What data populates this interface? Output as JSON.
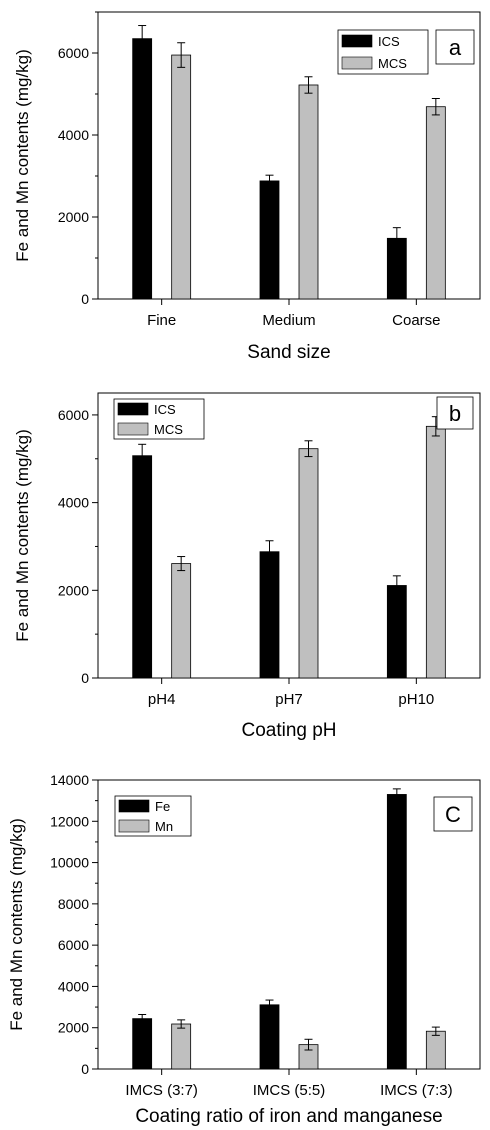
{
  "chart_data": [
    {
      "type": "bar",
      "panel_label": "a",
      "categories": [
        "Fine",
        "Medium",
        "Coarse"
      ],
      "series": [
        {
          "name": "ICS",
          "values": [
            6350,
            2880,
            1480
          ],
          "errors": [
            320,
            140,
            260
          ],
          "color": "#000000"
        },
        {
          "name": "MCS",
          "values": [
            5950,
            5220,
            4690
          ],
          "errors": [
            300,
            200,
            200
          ],
          "color": "#bfbfbf"
        }
      ],
      "xlabel": "Sand size",
      "ylabel": "Fe and Mn contents (mg/kg)",
      "ylim": [
        0,
        7000
      ],
      "yticks": [
        0,
        2000,
        4000,
        6000
      ],
      "minor_step": 1000,
      "legend_position": "top-right",
      "grid": false
    },
    {
      "type": "bar",
      "panel_label": "b",
      "categories": [
        "pH4",
        "pH7",
        "pH10"
      ],
      "series": [
        {
          "name": "ICS",
          "values": [
            5070,
            2880,
            2110
          ],
          "errors": [
            260,
            250,
            220
          ],
          "color": "#000000"
        },
        {
          "name": "MCS",
          "values": [
            2610,
            5230,
            5740
          ],
          "errors": [
            160,
            180,
            220
          ],
          "color": "#bfbfbf"
        }
      ],
      "xlabel": "Coating pH",
      "ylabel": "Fe and Mn contents (mg/kg)",
      "ylim": [
        0,
        6500
      ],
      "yticks": [
        0,
        2000,
        4000,
        6000
      ],
      "minor_step": 1000,
      "legend_position": "top-left",
      "grid": false
    },
    {
      "type": "bar",
      "panel_label": "C",
      "categories": [
        "IMCS (3:7)",
        "IMCS (5:5)",
        "IMCS (7:3)"
      ],
      "series": [
        {
          "name": "Fe",
          "values": [
            2440,
            3110,
            13300
          ],
          "errors": [
            200,
            230,
            270
          ],
          "color": "#000000"
        },
        {
          "name": "Mn",
          "values": [
            2180,
            1180,
            1830
          ],
          "errors": [
            200,
            260,
            200
          ],
          "color": "#bfbfbf"
        }
      ],
      "xlabel": "Coating ratio of iron and manganese",
      "ylabel": "Fe and Mn contents (mg/kg)",
      "ylim": [
        0,
        14000
      ],
      "yticks": [
        0,
        2000,
        4000,
        6000,
        8000,
        10000,
        12000,
        14000
      ],
      "minor_step": 1000,
      "legend_position": "top-left",
      "grid": false
    }
  ]
}
